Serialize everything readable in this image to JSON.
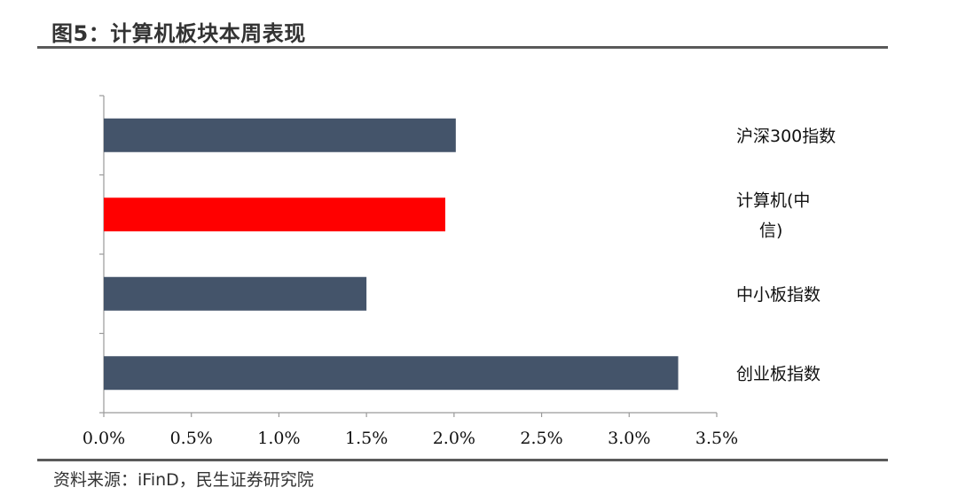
{
  "header": {
    "title": "图5：计算机板块本周表现"
  },
  "footer": {
    "source": "资料来源：iFinD，民生证券研究院"
  },
  "chart_data": {
    "type": "bar",
    "orientation": "horizontal",
    "title": "",
    "xlabel": "",
    "ylabel": "",
    "categories": [
      "沪深300指数",
      "计算机(中信)",
      "中小板指数",
      "创业板指数"
    ],
    "category_label_lines": [
      [
        "沪深300指数"
      ],
      [
        "计算机(中",
        "信)"
      ],
      [
        "中小板指数"
      ],
      [
        "创业板指数"
      ]
    ],
    "values": [
      2.01,
      1.95,
      1.5,
      3.28
    ],
    "bar_colors": [
      "#44546a",
      "#ff0000",
      "#44546a",
      "#44546a"
    ],
    "xlim": [
      0,
      3.5
    ],
    "xticks": [
      0,
      0.5,
      1.0,
      1.5,
      2.0,
      2.5,
      3.0,
      3.5
    ],
    "xtick_labels": [
      "0.0%",
      "0.5%",
      "1.0%",
      "1.5%",
      "2.0%",
      "2.5%",
      "3.0%",
      "3.5%"
    ],
    "category_labels_position": "right",
    "grid": false,
    "legend": "none"
  }
}
